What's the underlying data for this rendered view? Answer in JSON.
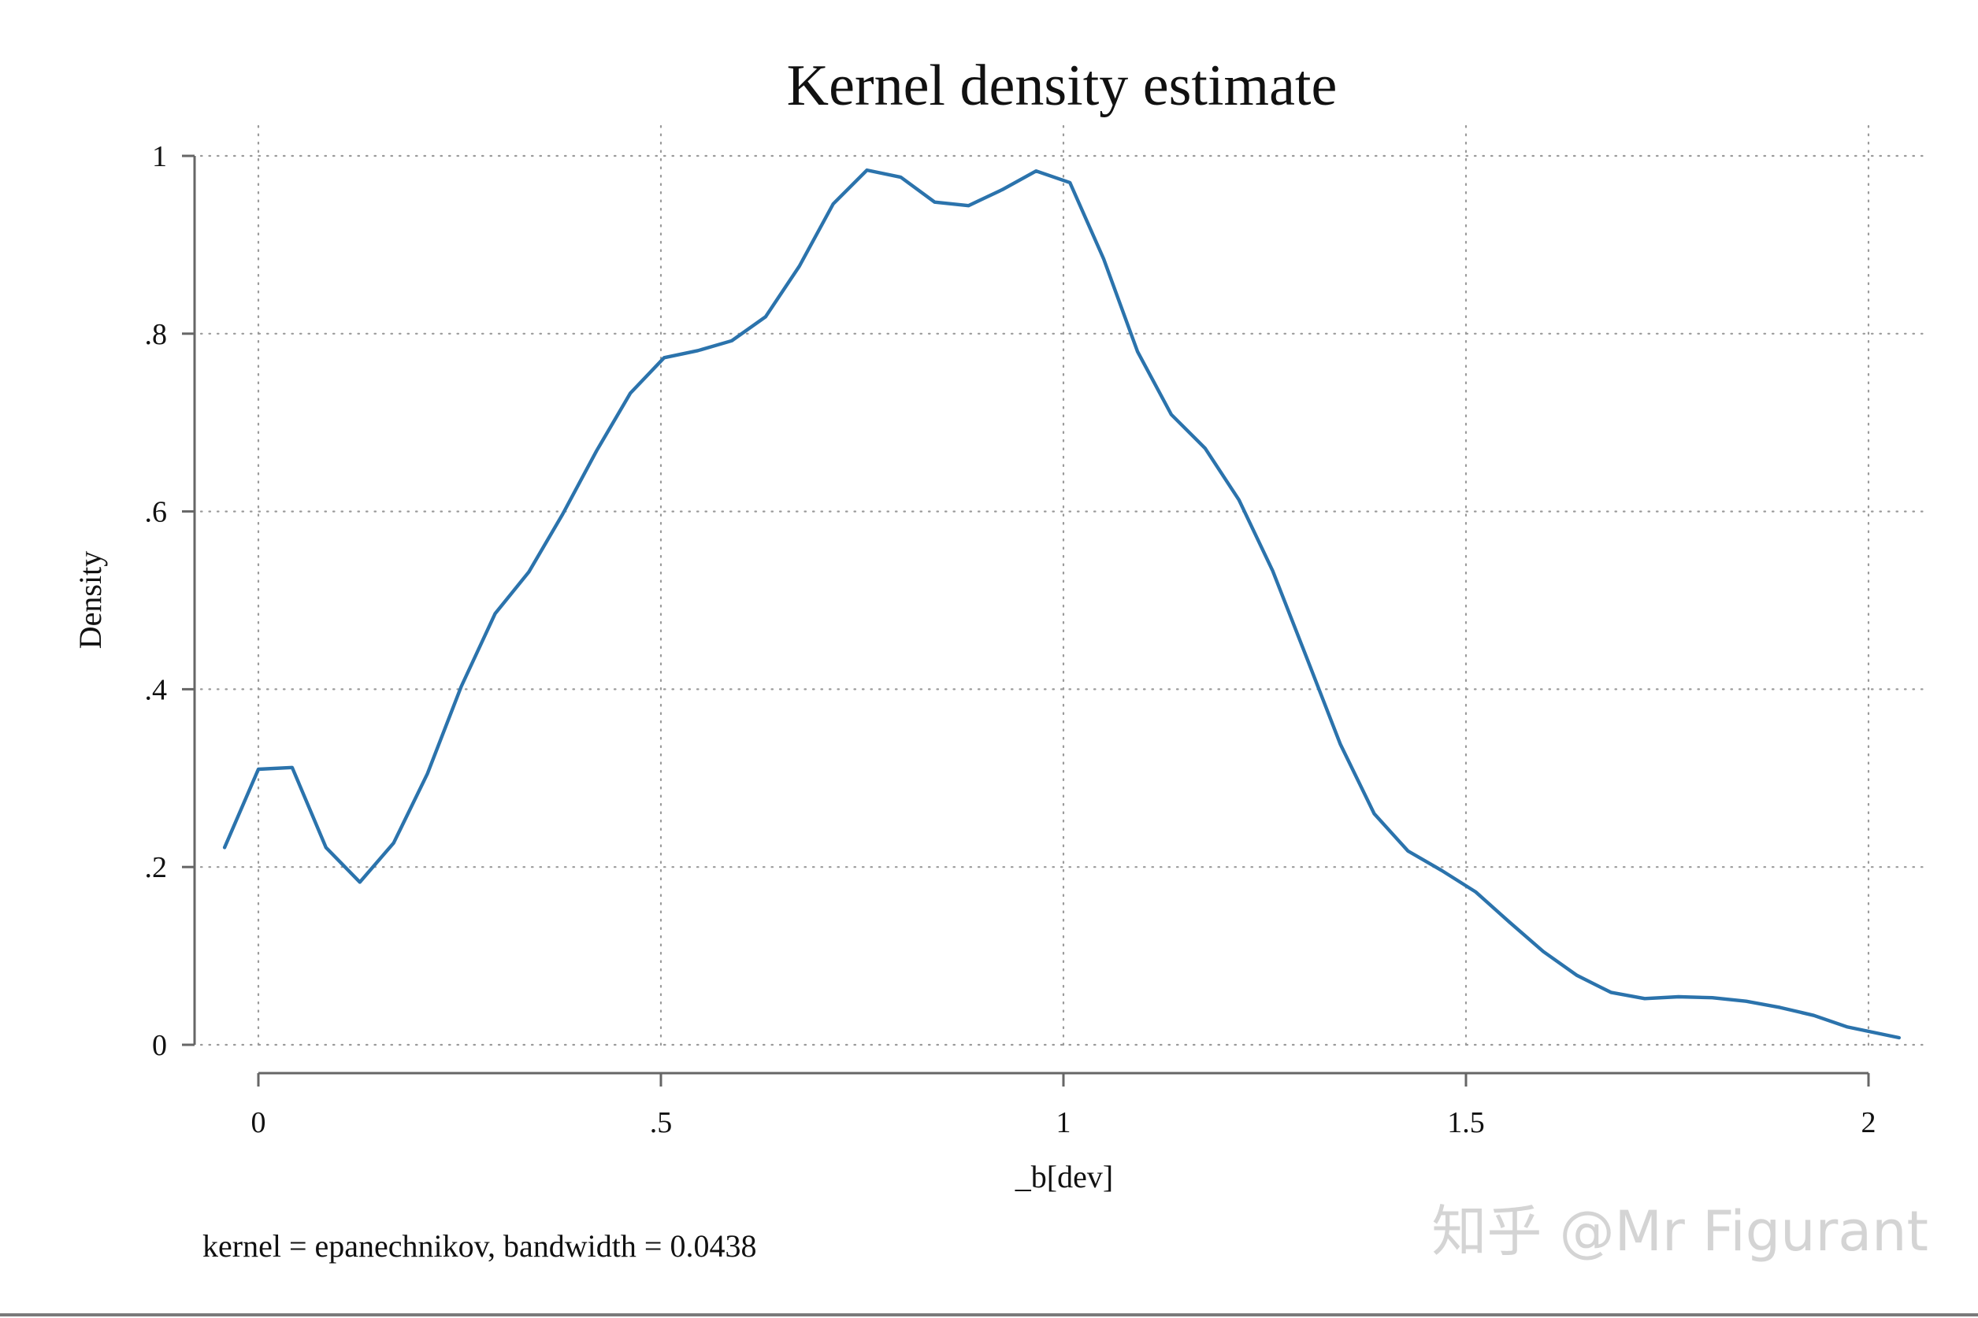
{
  "chart_data": {
    "type": "line",
    "title": "Kernel density estimate",
    "xlabel": "_b[dev]",
    "ylabel": "Density",
    "note": "kernel = epanechnikov, bandwidth = 0.0438",
    "xlim": [
      -0.075,
      2.075
    ],
    "ylim": [
      0,
      1
    ],
    "xticks": [
      0,
      0.5,
      1,
      1.5,
      2
    ],
    "xtick_labels": [
      "0",
      ".5",
      "1",
      "1.5",
      "2"
    ],
    "yticks": [
      0,
      0.2,
      0.4,
      0.6,
      0.8,
      1
    ],
    "ytick_labels": [
      "0",
      ".2",
      ".4",
      ".6",
      ".8",
      "1"
    ],
    "grid": true,
    "series": [
      {
        "color": "#2b73ac",
        "x": [
          -0.042,
          0.0,
          0.042,
          0.084,
          0.126,
          0.168,
          0.21,
          0.252,
          0.294,
          0.336,
          0.378,
          0.42,
          0.462,
          0.504,
          0.546,
          0.588,
          0.63,
          0.672,
          0.714,
          0.756,
          0.798,
          0.84,
          0.882,
          0.924,
          0.966,
          1.008,
          1.05,
          1.092,
          1.134,
          1.176,
          1.218,
          1.26,
          1.302,
          1.344,
          1.386,
          1.428,
          1.47,
          1.512,
          1.554,
          1.596,
          1.638,
          1.68,
          1.722,
          1.764,
          1.806,
          1.848,
          1.89,
          1.932,
          1.974,
          2.038
        ],
        "y": [
          0.222,
          0.31,
          0.312,
          0.222,
          0.183,
          0.227,
          0.305,
          0.403,
          0.485,
          0.532,
          0.597,
          0.668,
          0.733,
          0.773,
          0.781,
          0.792,
          0.819,
          0.876,
          0.946,
          0.984,
          0.976,
          0.948,
          0.944,
          0.962,
          0.983,
          0.97,
          0.884,
          0.78,
          0.709,
          0.671,
          0.613,
          0.533,
          0.436,
          0.338,
          0.26,
          0.218,
          0.196,
          0.172,
          0.138,
          0.105,
          0.078,
          0.059,
          0.052,
          0.054,
          0.053,
          0.049,
          0.042,
          0.033,
          0.02,
          0.008
        ]
      }
    ]
  },
  "watermark": "知乎 @Mr Figurant"
}
